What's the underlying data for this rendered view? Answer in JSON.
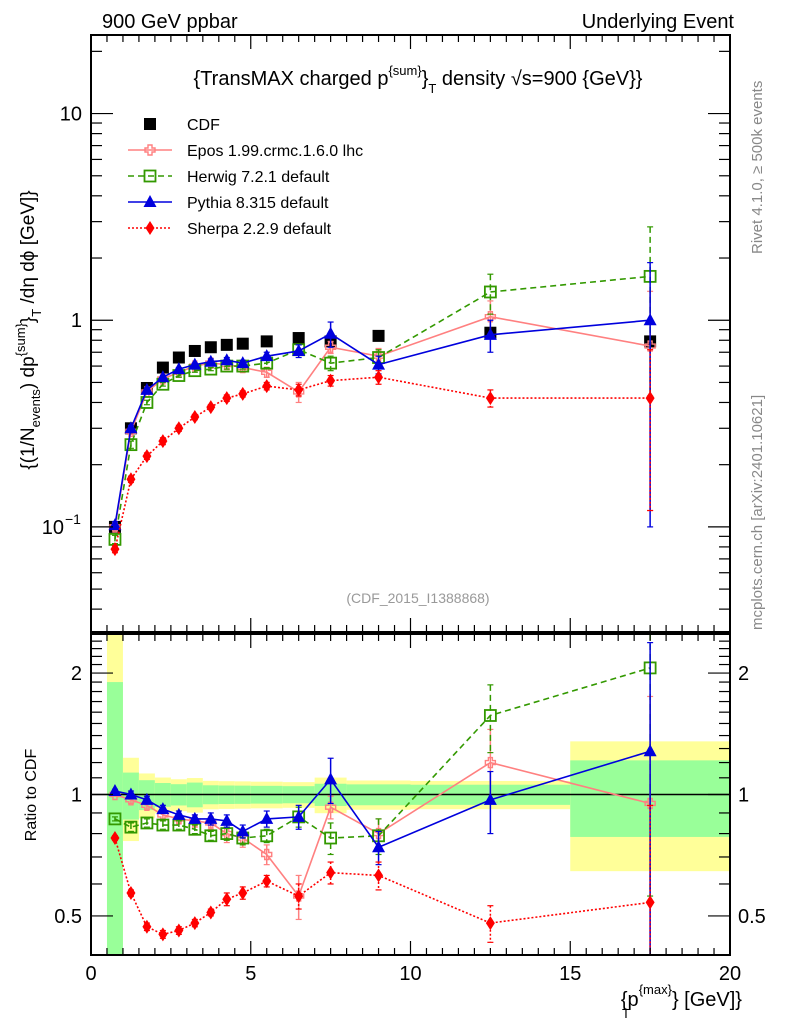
{
  "header": {
    "left": "900 GeV ppbar",
    "right": "Underlying Event"
  },
  "side_labels": {
    "rivet": "Rivet 4.1.0, ≥ 500k events",
    "mcplots": "mcplots.cern.ch [arXiv:2401.10621]"
  },
  "chart_data": {
    "type": "line",
    "title": "{TransMAX charged p^{sum}_T density √s=900 {GeV}}",
    "title_parts": {
      "pre": "{TransMAX charged p",
      "sup": "{sum}",
      "close": "}",
      "sub": "T",
      "post": " density √s=900 {GeV}}"
    },
    "xlabel": "{p_T^{max}} [GeV]",
    "xlabel_parts": {
      "pre": "{p",
      "sup": "{max}",
      "sub": "T",
      "post": "} [GeV]}"
    },
    "ylabel": "{(1/N_events) dp^{sum}_T /dη dϕ [GeV]}",
    "ratio_ylabel": "Ratio to CDF",
    "analysis_tag": "(CDF_2015_I1388868)",
    "xlim": [
      0,
      20
    ],
    "ylim": [
      0.031,
      24
    ],
    "yscale": "log",
    "ratio_ylim": [
      0.4,
      2.5
    ],
    "ratio_yscale": "log",
    "x_ticks": [
      0,
      5,
      10,
      15,
      20
    ],
    "x_tick_labels": [
      "0",
      "5",
      "10",
      "15",
      "20"
    ],
    "y_ticks": [
      0.1,
      1,
      10
    ],
    "y_tick_labels": [
      "10−1",
      "1",
      "10"
    ],
    "ratio_y_ticks": [
      0.5,
      1,
      2
    ],
    "ratio_y_tick_labels": [
      "0.5",
      "1",
      "2"
    ],
    "legend_position": "top-left",
    "x": [
      0.75,
      1.25,
      1.75,
      2.25,
      2.75,
      3.25,
      3.75,
      4.25,
      4.75,
      5.5,
      6.5,
      7.5,
      9.0,
      12.5,
      17.5
    ],
    "x_bin_edges": [
      0.5,
      1.0,
      1.5,
      2.0,
      2.5,
      3.0,
      3.5,
      4.0,
      4.5,
      5.0,
      6.0,
      7.0,
      8.0,
      10.0,
      15.0,
      20.0
    ],
    "data": {
      "name": "CDF",
      "values": [
        0.1,
        0.3,
        0.47,
        0.59,
        0.66,
        0.71,
        0.74,
        0.76,
        0.77,
        0.79,
        0.82,
        0.79,
        0.84,
        0.87,
        0.79
      ],
      "band_inner": [
        0.09,
        0.04,
        0.04,
        0.04,
        0.04,
        0.05,
        0.04,
        0.04,
        0.04,
        0.04,
        0.04,
        0.05,
        0.05,
        0.05,
        0.17
      ],
      "band_outer": [
        0.19,
        0.07,
        0.06,
        0.06,
        0.06,
        0.07,
        0.06,
        0.06,
        0.06,
        0.06,
        0.06,
        0.08,
        0.07,
        0.07,
        0.28
      ]
    },
    "series": [
      {
        "name": "Epos 1.99.crmc.1.6.0 lhc",
        "color": "#ff8080",
        "dash": "solid",
        "marker": "open-cross",
        "values": [
          0.1,
          0.29,
          0.45,
          0.52,
          0.56,
          0.6,
          0.62,
          0.61,
          0.59,
          0.56,
          0.45,
          0.74,
          0.67,
          1.04,
          0.75
        ],
        "errors": [
          0.004,
          0.01,
          0.01,
          0.01,
          0.01,
          0.02,
          0.02,
          0.03,
          0.03,
          0.03,
          0.05,
          0.05,
          0.06,
          0.2,
          0.63
        ],
        "ratio": [
          1.0,
          0.97,
          0.94,
          0.89,
          0.87,
          0.86,
          0.85,
          0.8,
          0.78,
          0.71,
          0.56,
          0.93,
          0.8,
          1.2,
          0.95
        ],
        "ratio_errors": [
          0.01,
          0.02,
          0.02,
          0.02,
          0.02,
          0.03,
          0.03,
          0.04,
          0.04,
          0.04,
          0.07,
          0.06,
          0.07,
          0.25,
          0.8
        ]
      },
      {
        "name": "Herwig 7.2.1 default",
        "color": "#339900",
        "dash": "dashed",
        "marker": "open-square",
        "values": [
          0.087,
          0.25,
          0.4,
          0.49,
          0.54,
          0.57,
          0.58,
          0.6,
          0.6,
          0.62,
          0.72,
          0.62,
          0.66,
          1.37,
          1.63
        ],
        "errors": [
          0.004,
          0.01,
          0.01,
          0.01,
          0.01,
          0.01,
          0.01,
          0.02,
          0.02,
          0.03,
          0.04,
          0.05,
          0.06,
          0.3,
          1.2
        ],
        "ratio": [
          0.87,
          0.83,
          0.85,
          0.84,
          0.84,
          0.82,
          0.79,
          0.8,
          0.78,
          0.79,
          0.88,
          0.78,
          0.79,
          1.57,
          2.06
        ],
        "ratio_errors": [
          0.01,
          0.02,
          0.02,
          0.02,
          0.02,
          0.02,
          0.02,
          0.03,
          0.03,
          0.03,
          0.05,
          0.07,
          0.08,
          0.3,
          1.5
        ]
      },
      {
        "name": "Pythia 8.315 default",
        "color": "#0000dd",
        "dash": "solid",
        "marker": "filled-triangle",
        "values": [
          0.102,
          0.3,
          0.46,
          0.53,
          0.58,
          0.61,
          0.63,
          0.64,
          0.62,
          0.67,
          0.71,
          0.86,
          0.61,
          0.85,
          1.0
        ],
        "errors": [
          0.004,
          0.01,
          0.01,
          0.01,
          0.01,
          0.01,
          0.02,
          0.02,
          0.02,
          0.03,
          0.05,
          0.12,
          0.06,
          0.15,
          0.9
        ],
        "ratio": [
          1.02,
          1.0,
          0.97,
          0.92,
          0.89,
          0.87,
          0.87,
          0.86,
          0.81,
          0.87,
          0.88,
          1.09,
          0.74,
          0.97,
          1.28
        ],
        "ratio_errors": [
          0.01,
          0.02,
          0.02,
          0.02,
          0.02,
          0.02,
          0.03,
          0.03,
          0.03,
          0.04,
          0.06,
          0.14,
          0.07,
          0.17,
          1.1
        ]
      },
      {
        "name": "Sherpa 2.2.9 default",
        "color": "#ff0000",
        "dash": "dotted",
        "marker": "filled-diamond",
        "values": [
          0.078,
          0.17,
          0.22,
          0.26,
          0.3,
          0.34,
          0.38,
          0.42,
          0.44,
          0.48,
          0.46,
          0.51,
          0.53,
          0.42,
          0.42
        ],
        "errors": [
          0.003,
          0.006,
          0.008,
          0.01,
          0.01,
          0.01,
          0.01,
          0.015,
          0.015,
          0.02,
          0.03,
          0.03,
          0.04,
          0.04,
          0.3
        ],
        "ratio": [
          0.78,
          0.57,
          0.47,
          0.45,
          0.46,
          0.48,
          0.51,
          0.55,
          0.57,
          0.61,
          0.56,
          0.64,
          0.63,
          0.48,
          0.54
        ],
        "ratio_errors": [
          0.01,
          0.01,
          0.01,
          0.01,
          0.01,
          0.01,
          0.01,
          0.02,
          0.02,
          0.02,
          0.04,
          0.04,
          0.05,
          0.05,
          0.4
        ]
      }
    ]
  }
}
